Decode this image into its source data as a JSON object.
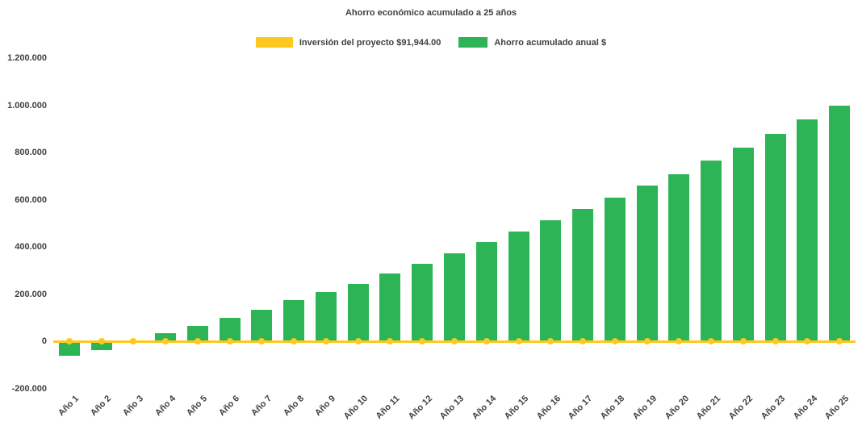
{
  "title": "Ahorro económico acumulado a 25 años",
  "legend": {
    "investment_label": "Inversión del proyecto $91,944.00",
    "savings_label": "Ahorro acumulado anual $"
  },
  "colors": {
    "investment": "#FFC81E",
    "savings": "#2DB457",
    "text": "#404040",
    "background": "#FFFFFF"
  },
  "chart_data": {
    "type": "bar",
    "title": "Ahorro económico acumulado a 25 años",
    "xlabel": "",
    "ylabel": "",
    "ylim": [
      -200000,
      1200000
    ],
    "grid": false,
    "legend_position": "top",
    "y_ticks": [
      {
        "value": 1200000,
        "label": "1.200.000"
      },
      {
        "value": 1000000,
        "label": "1.000.000"
      },
      {
        "value": 800000,
        "label": "800.000"
      },
      {
        "value": 600000,
        "label": "600.000"
      },
      {
        "value": 400000,
        "label": "400.000"
      },
      {
        "value": 200000,
        "label": "200.000"
      },
      {
        "value": 0,
        "label": "0"
      },
      {
        "value": -200000,
        "label": "-200.000"
      }
    ],
    "categories": [
      "Año 1",
      "Año 2",
      "Año 3",
      "Año 4",
      "Año 5",
      "Año 6",
      "Año 7",
      "Año 8",
      "Año 9",
      "Año 10",
      "Año 11",
      "Año 12",
      "Año 13",
      "Año 14",
      "Año 15",
      "Año 16",
      "Año 17",
      "Año 18",
      "Año 19",
      "Año 20",
      "Año 21",
      "Año 22",
      "Año 23",
      "Año 24",
      "Año 25"
    ],
    "series": [
      {
        "name": "Ahorro acumulado anual $",
        "type": "bar",
        "color": "#2DB457",
        "values": [
          -60000,
          -35000,
          5000,
          35000,
          65000,
          100000,
          135000,
          175000,
          210000,
          245000,
          290000,
          330000,
          375000,
          420000,
          465000,
          515000,
          560000,
          610000,
          660000,
          710000,
          765000,
          820000,
          880000,
          940000,
          1000000
        ]
      },
      {
        "name": "Inversión del proyecto $91,944.00",
        "type": "line",
        "color": "#FFC81E",
        "constant_value": 0
      }
    ]
  }
}
